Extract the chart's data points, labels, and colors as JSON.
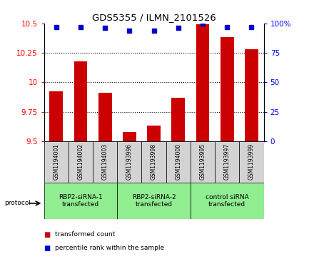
{
  "title": "GDS5355 / ILMN_2101526",
  "samples": [
    "GSM1194001",
    "GSM1194002",
    "GSM1194003",
    "GSM1193996",
    "GSM1193998",
    "GSM1194000",
    "GSM1193995",
    "GSM1193997",
    "GSM1193999"
  ],
  "bar_values": [
    9.92,
    10.18,
    9.91,
    9.58,
    9.63,
    9.87,
    10.49,
    10.38,
    10.28
  ],
  "dot_values": [
    97,
    97,
    96,
    94,
    94,
    96,
    100,
    97,
    97
  ],
  "bar_color": "#cc0000",
  "dot_color": "#0000cc",
  "ylim_left": [
    9.5,
    10.5
  ],
  "ylim_right": [
    0,
    100
  ],
  "yticks_left": [
    9.5,
    9.75,
    10.0,
    10.25,
    10.5
  ],
  "yticks_right": [
    0,
    25,
    50,
    75,
    100
  ],
  "groups": [
    {
      "label": "RBP2-siRNA-1\ntransfected",
      "start": 0,
      "end": 3,
      "color": "#90ee90"
    },
    {
      "label": "RBP2-siRNA-2\ntransfected",
      "start": 3,
      "end": 6,
      "color": "#90ee90"
    },
    {
      "label": "control siRNA\ntransfected",
      "start": 6,
      "end": 9,
      "color": "#90ee90"
    }
  ],
  "legend_bar_label": "transformed count",
  "legend_dot_label": "percentile rank within the sample",
  "protocol_label": "protocol",
  "background_color": "#ffffff",
  "sample_box_color": "#d3d3d3"
}
